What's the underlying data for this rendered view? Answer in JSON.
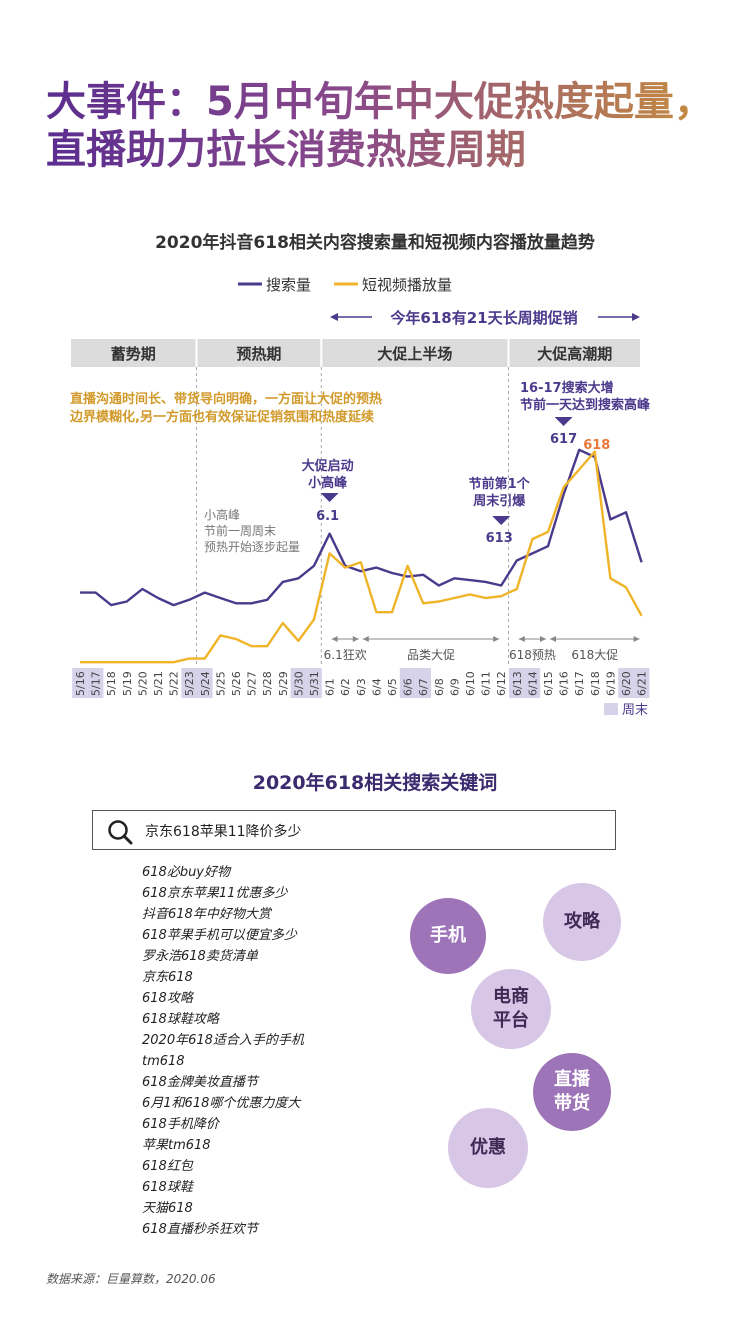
{
  "headline": "大事件：5月中旬年中大促热度起量，直播助力拉长消费热度周期",
  "chart_data": {
    "type": "line",
    "title": "2020年抖音618相关内容搜索量和短视频内容播放量趋势",
    "categories": [
      "5/16",
      "5/17",
      "5/18",
      "5/19",
      "5/20",
      "5/21",
      "5/22",
      "5/23",
      "5/24",
      "5/25",
      "5/26",
      "5/27",
      "5/28",
      "5/29",
      "5/30",
      "5/31",
      "6/1",
      "6/2",
      "6/3",
      "6/4",
      "6/5",
      "6/6",
      "6/7",
      "6/8",
      "6/9",
      "6/10",
      "6/11",
      "6/12",
      "6/13",
      "6/14",
      "6/15",
      "6/16",
      "6/17",
      "6/18",
      "6/19",
      "6/20",
      "6/21"
    ],
    "weekend_categories": [
      "5/16",
      "5/17",
      "5/23",
      "5/24",
      "5/30",
      "5/31",
      "6/6",
      "6/7",
      "6/13",
      "6/14",
      "6/20",
      "6/21"
    ],
    "weekend_legend": "周末",
    "series": [
      {
        "name": "搜索量",
        "color": "#4b3a8c",
        "values": [
          40,
          40,
          33,
          35,
          42,
          37,
          33,
          36,
          40,
          37,
          34,
          34,
          36,
          46,
          48,
          55,
          73,
          55,
          52,
          54,
          51,
          49,
          50,
          44,
          48,
          47,
          46,
          44,
          58,
          62,
          66,
          95,
          120,
          116,
          81,
          85,
          57
        ]
      },
      {
        "name": "短视频播放量",
        "color": "#f0b429",
        "values": [
          1,
          1,
          1,
          1,
          1,
          1,
          1,
          3,
          3,
          16,
          14,
          10,
          10,
          23,
          13,
          25,
          62,
          54,
          57,
          29,
          29,
          55,
          34,
          35,
          37,
          39,
          37,
          38,
          42,
          70,
          74,
          99,
          109,
          119,
          48,
          43,
          27
        ]
      }
    ],
    "ylim": [
      0,
      130
    ],
    "grid": false,
    "legend_position": "top-center",
    "cycle_label": "今年618有21天长周期促销",
    "phases": [
      {
        "label": "蓄势期",
        "from": "5/16",
        "to": "5/23"
      },
      {
        "label": "预热期",
        "from": "5/24",
        "to": "5/31"
      },
      {
        "label": "大促上半场",
        "from": "6/1",
        "to": "6/12"
      },
      {
        "label": "大促高潮期",
        "from": "6/13",
        "to": "6/21"
      }
    ],
    "sub_periods": [
      {
        "label": "6.1狂欢",
        "from": "6/1",
        "to": "6/3"
      },
      {
        "label": "品类大促",
        "from": "6/3",
        "to": "6/12"
      },
      {
        "label": "618预热",
        "from": "6/13",
        "to": "6/15"
      },
      {
        "label": "618大促",
        "from": "6/15",
        "to": "6/21"
      }
    ],
    "annotations": {
      "live_note": "直播沟通时间长、带货导向明确，一方面让大促的预热\n边界模糊化,另一方面也有效保证促销氛围和热度延续",
      "small_peak_note": "小高峰\n节前一周周末\n预热开始逐步起量",
      "kickoff_note": "大促启动\n小高峰",
      "kickoff_value": "6.1",
      "weekend_note": "节前第1个\n周末引爆",
      "weekend_value": "613",
      "surge_note": "16-17搜索大增\n节前一天达到搜索高峰",
      "peak_617": "617",
      "peak_618": "618"
    }
  },
  "keywords": {
    "title": "2020年618相关搜索关键词",
    "search_value": "京东618苹果11降价多少",
    "suggestions": [
      "618必buy好物",
      "618京东苹果11优惠多少",
      "抖音618年中好物大赏",
      "618苹果手机可以便宜多少",
      "罗永浩618卖货清单",
      "京东618",
      "618攻略",
      "618球鞋攻略",
      "2020年618适合入手的手机",
      "tm618",
      "618金牌美妆直播节",
      "6月1和618哪个优惠力度大",
      "618手机降价",
      "苹果tm618",
      "618红包",
      "618球鞋",
      "天猫618",
      "618直播秒杀狂欢节"
    ],
    "bubbles": [
      {
        "label": "手机",
        "style": "dark"
      },
      {
        "label": "攻略",
        "style": "light"
      },
      {
        "label": "电商\n平台",
        "style": "light"
      },
      {
        "label": "直播\n带货",
        "style": "dark"
      },
      {
        "label": "优惠",
        "style": "light"
      }
    ]
  },
  "source": "数据来源：巨量算数，2020.06"
}
